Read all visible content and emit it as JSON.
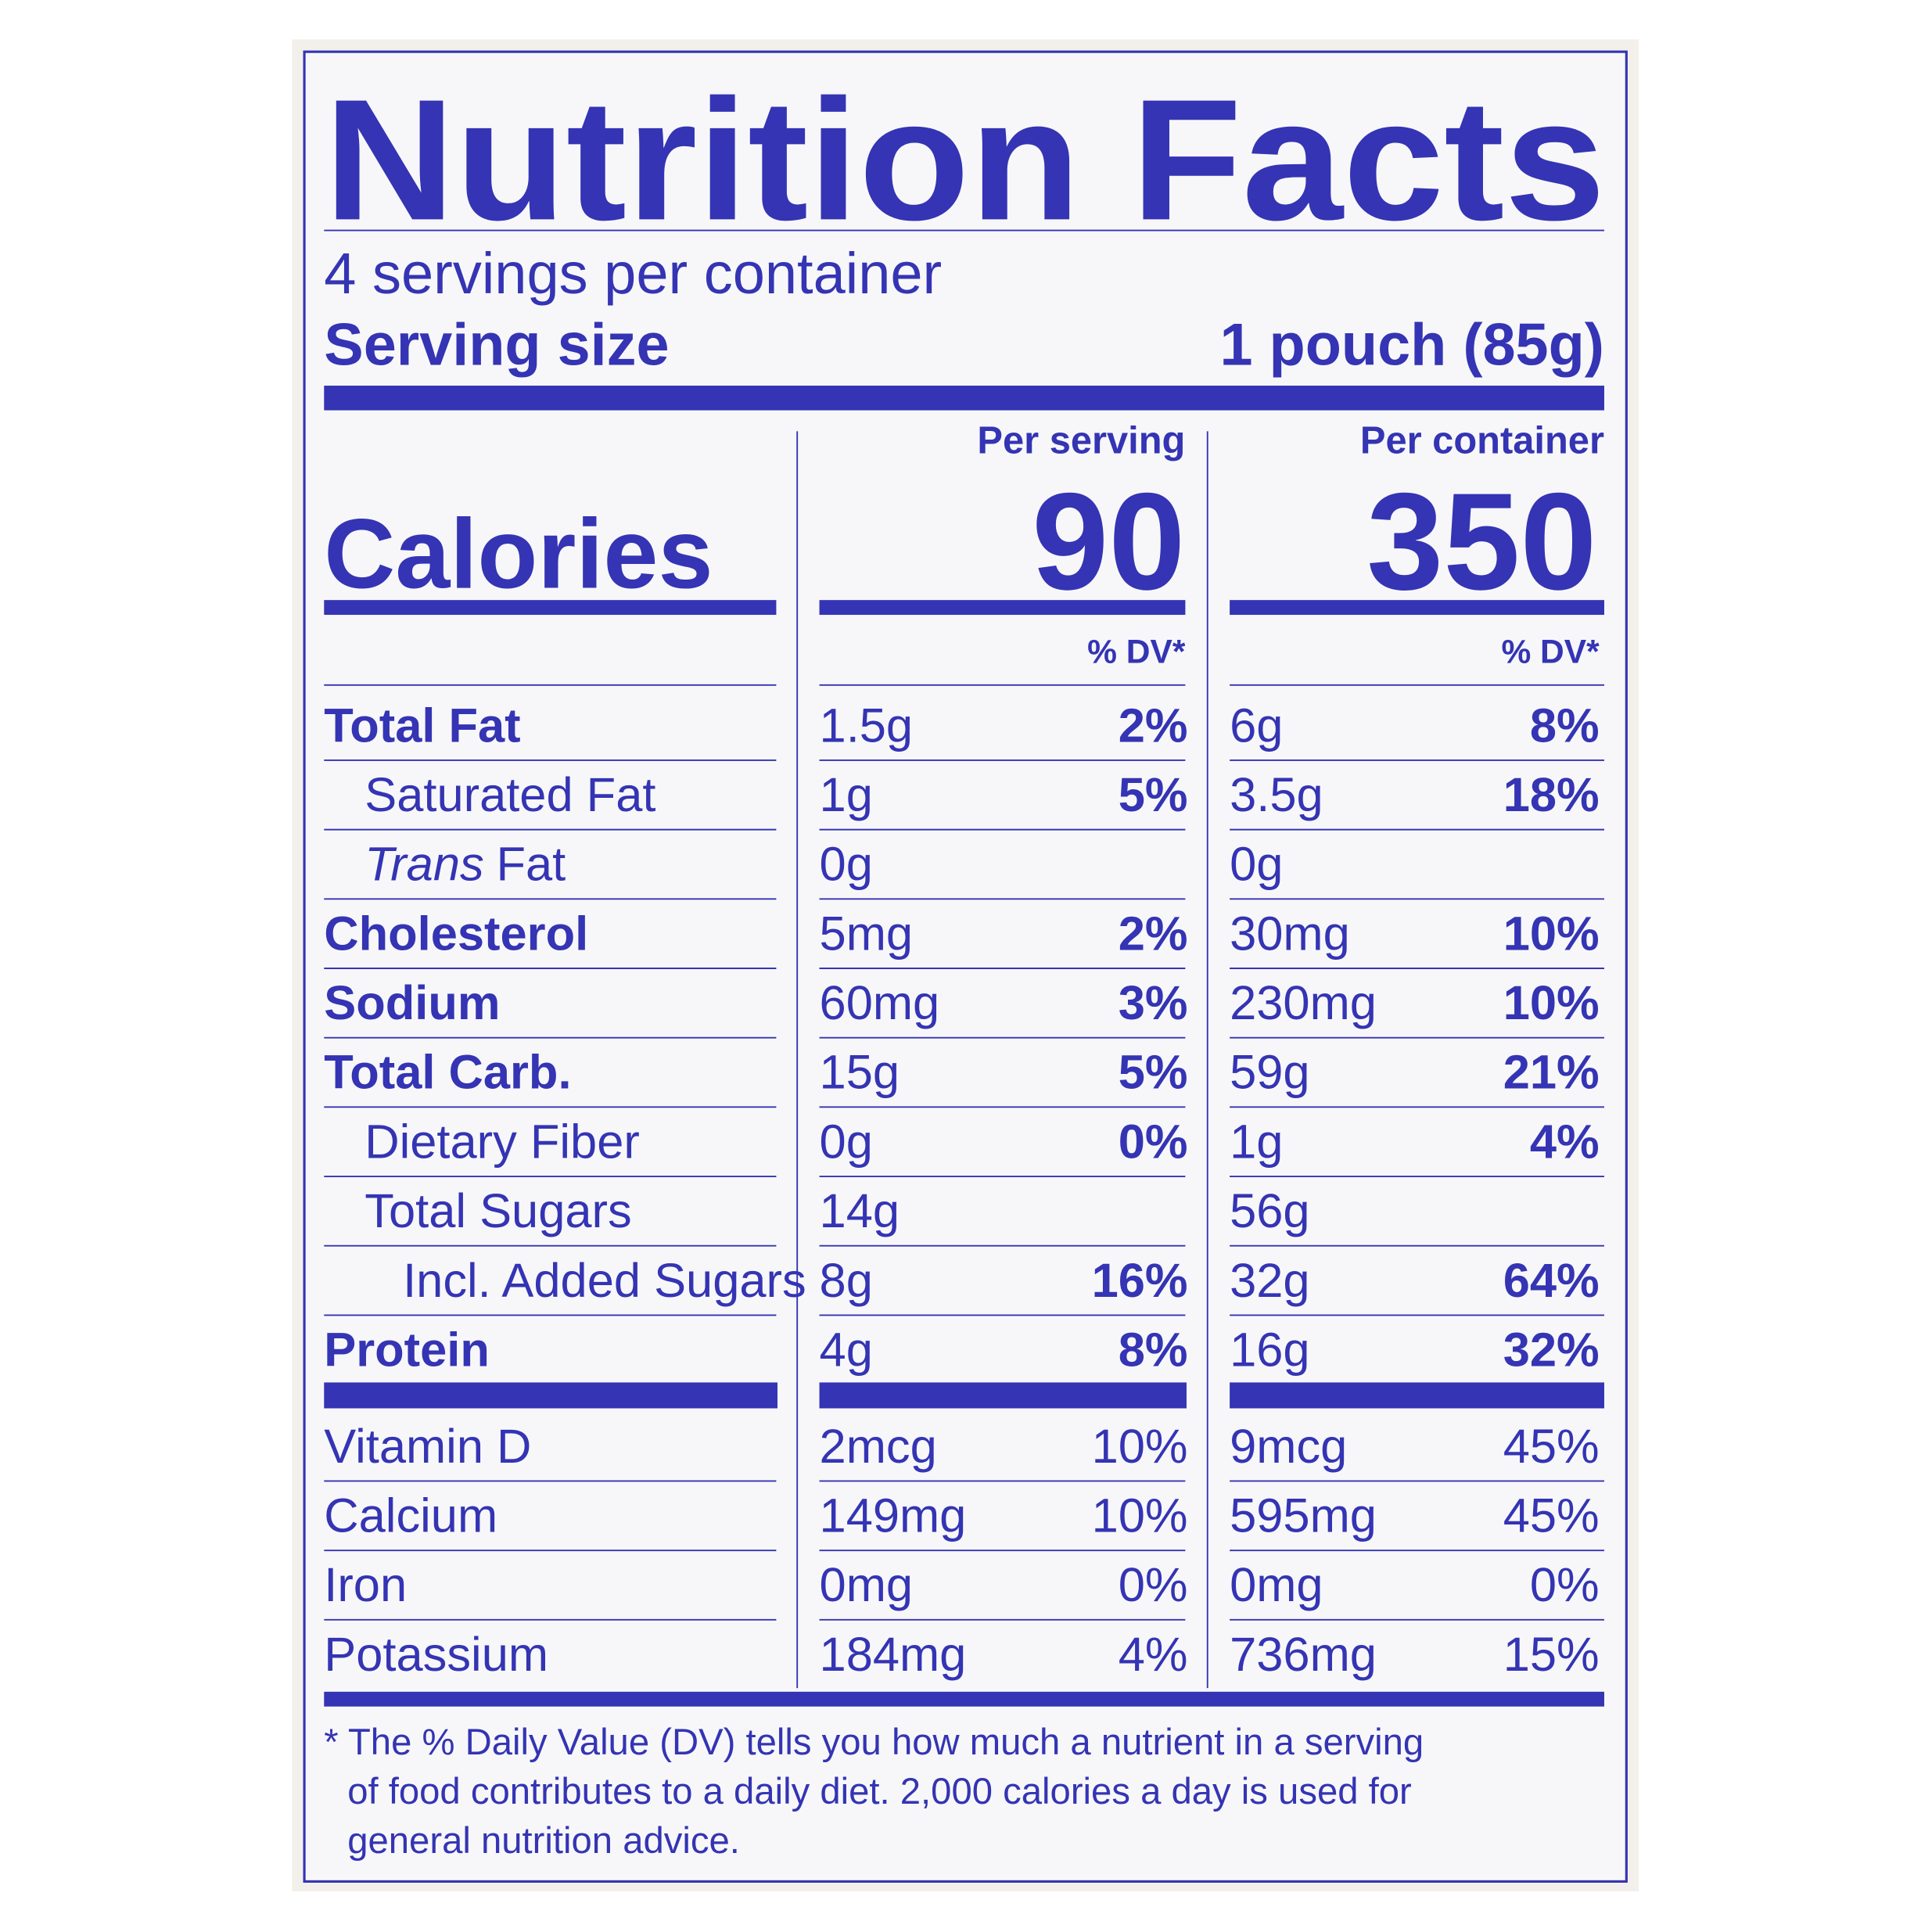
{
  "title": "Nutrition Facts",
  "servings_per_container": "4 servings per container",
  "serving_size": {
    "label": "Serving size",
    "value": "1 pouch (85g)"
  },
  "columns": {
    "per_serving": "Per serving",
    "per_container": "Per container",
    "dv_header": "% DV*"
  },
  "calories": {
    "label": "Calories",
    "per_serving": "90",
    "per_container": "350"
  },
  "nutrients": [
    {
      "name": "Total Fat",
      "serving": "1.5g",
      "serving_dv": "2%",
      "container": "6g",
      "container_dv": "8%"
    },
    {
      "name": "Saturated Fat",
      "serving": "1g",
      "serving_dv": "5%",
      "container": "3.5g",
      "container_dv": "18%"
    },
    {
      "name_italic": "Trans",
      "name": "Fat",
      "serving": "0g",
      "container": "0g"
    },
    {
      "name": "Cholesterol",
      "serving": "5mg",
      "serving_dv": "2%",
      "container": "30mg",
      "container_dv": "10%"
    },
    {
      "name": "Sodium",
      "serving": "60mg",
      "serving_dv": "3%",
      "container": "230mg",
      "container_dv": "10%"
    },
    {
      "name": "Total Carb.",
      "serving": "15g",
      "serving_dv": "5%",
      "container": "59g",
      "container_dv": "21%"
    },
    {
      "name": "Dietary Fiber",
      "serving": "0g",
      "serving_dv": "0%",
      "container": "1g",
      "container_dv": "4%"
    },
    {
      "name": "Total Sugars",
      "serving": "14g",
      "container": "56g"
    },
    {
      "name": "Incl. Added Sugars",
      "serving": "8g",
      "serving_dv": "16%",
      "container": "32g",
      "container_dv": "64%"
    },
    {
      "name": "Protein",
      "serving": "4g",
      "serving_dv": "8%",
      "container": "16g",
      "container_dv": "32%"
    }
  ],
  "vitamins": [
    {
      "name": "Vitamin D",
      "serving": "2mcg",
      "serving_dv": "10%",
      "container": "9mcg",
      "container_dv": "45%"
    },
    {
      "name": "Calcium",
      "serving": "149mg",
      "serving_dv": "10%",
      "container": "595mg",
      "container_dv": "45%"
    },
    {
      "name": "Iron",
      "serving": "0mg",
      "serving_dv": "0%",
      "container": "0mg",
      "container_dv": "0%"
    },
    {
      "name": "Potassium",
      "serving": "184mg",
      "serving_dv": "4%",
      "container": "736mg",
      "container_dv": "15%"
    }
  ],
  "footnote": [
    "* The % Daily Value (DV) tells you how much a nutrient in a serving",
    "of food contributes to a daily diet. 2,000 calories a day is used for",
    "general nutrition advice."
  ]
}
